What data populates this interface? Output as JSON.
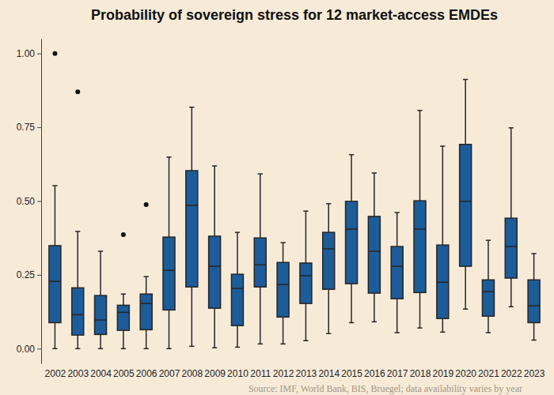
{
  "chart_data": {
    "type": "box",
    "title": "Probability of sovereign stress for 12 market-access EMDEs",
    "source": "Source: IMF, World Bank, BIS, Bruegel; data availability varies by year",
    "categories": [
      "2002",
      "2003",
      "2004",
      "2005",
      "2006",
      "2007",
      "2008",
      "2009",
      "2010",
      "2011",
      "2012",
      "2013",
      "2014",
      "2015",
      "2016",
      "2017",
      "2018",
      "2019",
      "2020",
      "2021",
      "2022",
      "2023"
    ],
    "min": [
      0.0,
      0.0,
      0.0,
      0.0,
      0.0,
      0.0,
      0.008,
      0.003,
      0.005,
      0.016,
      0.016,
      0.027,
      0.051,
      0.088,
      0.091,
      0.054,
      0.07,
      0.056,
      0.134,
      0.054,
      0.142,
      0.029
    ],
    "q1": [
      0.088,
      0.046,
      0.048,
      0.062,
      0.064,
      0.131,
      0.209,
      0.137,
      0.078,
      0.209,
      0.107,
      0.153,
      0.201,
      0.22,
      0.188,
      0.169,
      0.19,
      0.102,
      0.279,
      0.11,
      0.239,
      0.088
    ],
    "median": [
      0.228,
      0.115,
      0.097,
      0.123,
      0.153,
      0.265,
      0.485,
      0.279,
      0.204,
      0.284,
      0.217,
      0.247,
      0.338,
      0.405,
      0.33,
      0.279,
      0.405,
      0.225,
      0.499,
      0.193,
      0.346,
      0.145
    ],
    "q3": [
      0.349,
      0.206,
      0.18,
      0.147,
      0.185,
      0.378,
      0.603,
      0.381,
      0.252,
      0.375,
      0.292,
      0.29,
      0.394,
      0.499,
      0.448,
      0.346,
      0.501,
      0.351,
      0.692,
      0.233,
      0.442,
      0.233
    ],
    "max": [
      0.552,
      0.397,
      0.33,
      0.185,
      0.244,
      0.649,
      0.818,
      0.619,
      0.394,
      0.592,
      0.359,
      0.466,
      0.491,
      0.657,
      0.595,
      0.461,
      0.807,
      0.686,
      0.912,
      0.367,
      0.748,
      0.322
    ],
    "outliers": [
      [
        1.0
      ],
      [
        0.87
      ],
      [],
      [
        0.386
      ],
      [
        0.488
      ],
      [],
      [],
      [],
      [],
      [],
      [],
      [],
      [],
      [],
      [],
      [],
      [],
      [],
      [],
      [],
      [],
      []
    ],
    "color": "#1c5c99",
    "ylim": [
      -0.05,
      1.05
    ],
    "yticks": [
      {
        "value": 0,
        "label": "0.00"
      },
      {
        "value": 0.25,
        "label": "0.25"
      },
      {
        "value": 0.5,
        "label": "0.50"
      },
      {
        "value": 0.75,
        "label": "0.75"
      },
      {
        "value": 1,
        "label": "1.00"
      }
    ],
    "grid": false
  }
}
